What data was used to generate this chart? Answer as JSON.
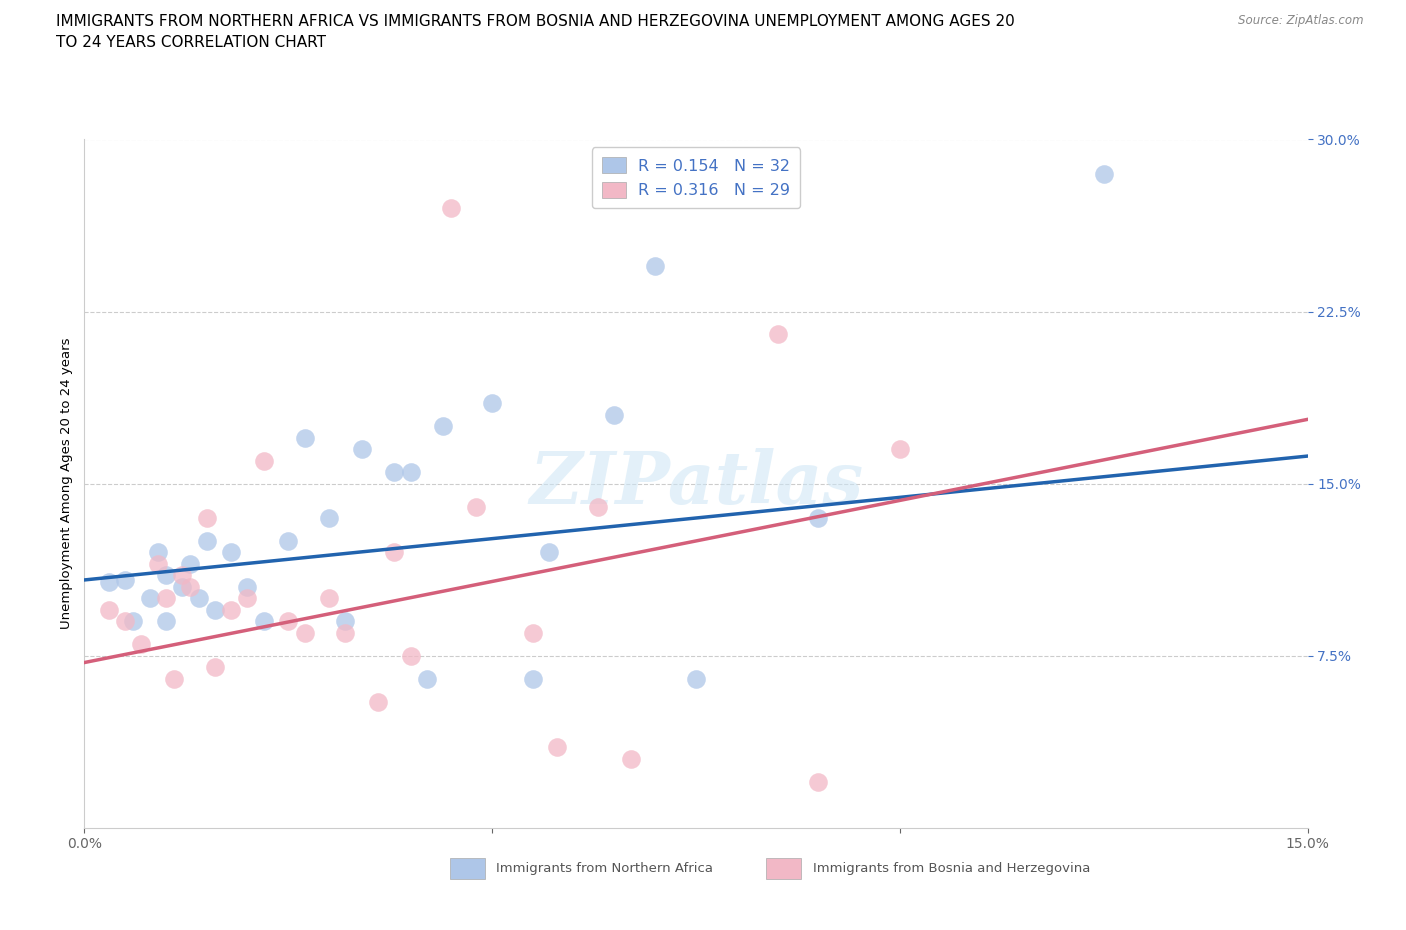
{
  "title_line1": "IMMIGRANTS FROM NORTHERN AFRICA VS IMMIGRANTS FROM BOSNIA AND HERZEGOVINA UNEMPLOYMENT AMONG AGES 20",
  "title_line2": "TO 24 YEARS CORRELATION CHART",
  "source": "Source: ZipAtlas.com",
  "ylabel": "Unemployment Among Ages 20 to 24 years",
  "xlim": [
    0.0,
    0.15
  ],
  "ylim": [
    0.0,
    0.3
  ],
  "xticks": [
    0.0,
    0.05,
    0.1,
    0.15
  ],
  "xtick_labels": [
    "0.0%",
    "",
    "",
    "15.0%"
  ],
  "yticks": [
    0.075,
    0.15,
    0.225,
    0.3
  ],
  "ytick_labels": [
    "7.5%",
    "15.0%",
    "22.5%",
    "30.0%"
  ],
  "legend1_R": "R = 0.154",
  "legend1_N": "N = 32",
  "legend2_R": "R = 0.316",
  "legend2_N": "N = 29",
  "legend1_face": "#aec6e8",
  "legend2_face": "#f2b8c6",
  "line1_color": "#2163ae",
  "line2_color": "#d45f7a",
  "dot1_color": "#aec6e8",
  "dot2_color": "#f2b8c6",
  "axis_tick_color": "#4472c4",
  "watermark": "ZIPatlas",
  "blue_scatter_x": [
    0.003,
    0.005,
    0.006,
    0.008,
    0.009,
    0.01,
    0.01,
    0.012,
    0.013,
    0.014,
    0.015,
    0.016,
    0.018,
    0.02,
    0.022,
    0.025,
    0.027,
    0.03,
    0.032,
    0.034,
    0.038,
    0.04,
    0.042,
    0.044,
    0.05,
    0.055,
    0.057,
    0.065,
    0.07,
    0.075,
    0.09,
    0.125
  ],
  "blue_scatter_y": [
    0.107,
    0.108,
    0.09,
    0.1,
    0.12,
    0.11,
    0.09,
    0.105,
    0.115,
    0.1,
    0.125,
    0.095,
    0.12,
    0.105,
    0.09,
    0.125,
    0.17,
    0.135,
    0.09,
    0.165,
    0.155,
    0.155,
    0.065,
    0.175,
    0.185,
    0.065,
    0.12,
    0.18,
    0.245,
    0.065,
    0.135,
    0.285
  ],
  "pink_scatter_x": [
    0.003,
    0.005,
    0.007,
    0.009,
    0.01,
    0.011,
    0.012,
    0.013,
    0.015,
    0.016,
    0.018,
    0.02,
    0.022,
    0.025,
    0.027,
    0.03,
    0.032,
    0.036,
    0.038,
    0.04,
    0.045,
    0.048,
    0.055,
    0.058,
    0.063,
    0.067,
    0.085,
    0.09,
    0.1
  ],
  "pink_scatter_y": [
    0.095,
    0.09,
    0.08,
    0.115,
    0.1,
    0.065,
    0.11,
    0.105,
    0.135,
    0.07,
    0.095,
    0.1,
    0.16,
    0.09,
    0.085,
    0.1,
    0.085,
    0.055,
    0.12,
    0.075,
    0.27,
    0.14,
    0.085,
    0.035,
    0.14,
    0.03,
    0.215,
    0.02,
    0.165
  ],
  "blue_line_x": [
    0.0,
    0.15
  ],
  "blue_line_y": [
    0.108,
    0.162
  ],
  "pink_line_x": [
    0.0,
    0.15
  ],
  "pink_line_y": [
    0.072,
    0.178
  ],
  "background_color": "#ffffff",
  "grid_color": "#cccccc",
  "bottom_label1": "Immigrants from Northern Africa",
  "bottom_label2": "Immigrants from Bosnia and Herzegovina",
  "title_fontsize": 11,
  "label_fontsize": 9.5,
  "tick_fontsize": 10
}
